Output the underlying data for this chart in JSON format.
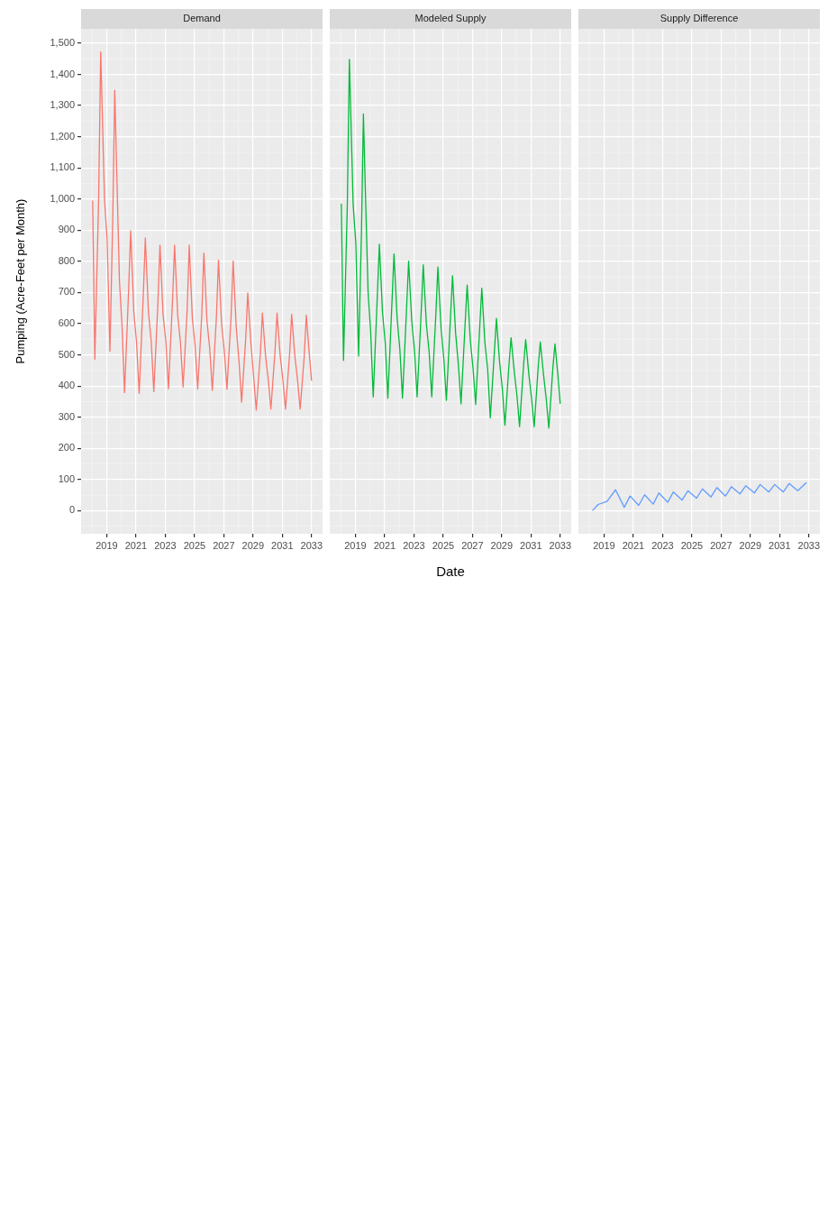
{
  "chart_data": [
    {
      "type": "line",
      "title": "Demand",
      "ylabel": "Pumping (Acre-Feet per Month)",
      "color": "#f8766d",
      "x": [
        2018.04,
        2018.19,
        2018.45,
        2018.59,
        2018.85,
        2019.03,
        2019.22,
        2019.42,
        2019.55,
        2019.67,
        2019.87,
        2020.04,
        2020.22,
        2020.5,
        2020.64,
        2020.85,
        2021.04,
        2021.22,
        2021.5,
        2021.64,
        2021.85,
        2022.04,
        2022.22,
        2022.5,
        2022.64,
        2022.85,
        2023.04,
        2023.22,
        2023.5,
        2023.64,
        2023.85,
        2024.04,
        2024.22,
        2024.5,
        2024.64,
        2024.85,
        2025.04,
        2025.22,
        2025.5,
        2025.64,
        2025.85,
        2026.04,
        2026.22,
        2026.5,
        2026.64,
        2026.85,
        2027.04,
        2027.22,
        2027.5,
        2027.64,
        2027.85,
        2028.04,
        2028.22,
        2028.5,
        2028.64,
        2028.85,
        2029.04,
        2029.22,
        2029.5,
        2029.64,
        2029.85,
        2030.04,
        2030.22,
        2030.5,
        2030.64,
        2030.85,
        2031.04,
        2031.22,
        2031.5,
        2031.64,
        2031.85,
        2032.04,
        2032.22,
        2032.5,
        2032.64,
        2032.85,
        2033.0
      ],
      "values": [
        995,
        486,
        1000,
        1472,
        1000,
        870,
        512,
        950,
        1349,
        1120,
        740,
        600,
        379,
        710,
        898,
        640,
        540,
        377,
        691,
        875,
        640,
        545,
        382,
        667,
        852,
        630,
        545,
        391,
        675,
        852,
        630,
        540,
        397,
        645,
        852,
        620,
        530,
        391,
        631,
        827,
        610,
        520,
        386,
        624,
        804,
        600,
        510,
        390,
        624,
        801,
        590,
        480,
        348,
        553,
        699,
        540,
        430,
        323,
        503,
        634,
        500,
        420,
        326,
        510,
        634,
        500,
        420,
        326,
        503,
        630,
        500,
        420,
        326,
        496,
        627,
        500,
        417
      ],
      "xlim": [
        2017.25,
        2033.75
      ],
      "xticks": [
        2019,
        2021,
        2023,
        2025,
        2027,
        2029,
        2031,
        2033
      ],
      "ylim": [
        -74,
        1546
      ],
      "yticks": [
        0,
        100,
        200,
        300,
        400,
        500,
        600,
        700,
        800,
        900,
        {
          "value": 1000,
          "label": "1,000"
        },
        {
          "value": 1100,
          "label": "1,100"
        },
        {
          "value": 1200,
          "label": "1,200"
        },
        {
          "value": 1300,
          "label": "1,300"
        },
        {
          "value": 1400,
          "label": "1,400"
        },
        {
          "value": 1500,
          "label": "1,500"
        }
      ],
      "grid": true
    },
    {
      "type": "line",
      "title": "Modeled Supply",
      "xlabel": "Date",
      "color": "#00ba38",
      "x": [
        2018.04,
        2018.19,
        2018.45,
        2018.59,
        2018.85,
        2019.03,
        2019.22,
        2019.42,
        2019.55,
        2019.67,
        2019.87,
        2020.04,
        2020.22,
        2020.5,
        2020.64,
        2020.85,
        2021.04,
        2021.22,
        2021.5,
        2021.64,
        2021.85,
        2022.04,
        2022.22,
        2022.5,
        2022.64,
        2022.85,
        2023.04,
        2023.22,
        2023.5,
        2023.64,
        2023.85,
        2024.04,
        2024.22,
        2024.5,
        2024.64,
        2024.85,
        2025.04,
        2025.22,
        2025.5,
        2025.64,
        2025.85,
        2026.04,
        2026.22,
        2026.5,
        2026.64,
        2026.85,
        2027.04,
        2027.22,
        2027.5,
        2027.64,
        2027.85,
        2028.04,
        2028.22,
        2028.5,
        2028.64,
        2028.85,
        2029.04,
        2029.22,
        2029.5,
        2029.64,
        2029.85,
        2030.04,
        2030.22,
        2030.5,
        2030.64,
        2030.85,
        2031.04,
        2031.22,
        2031.5,
        2031.64,
        2031.85,
        2032.04,
        2032.22,
        2032.5,
        2032.64,
        2032.85,
        2033.0
      ],
      "values": [
        985,
        482,
        980,
        1448,
        980,
        860,
        496,
        900,
        1273,
        1050,
        700,
        580,
        365,
        688,
        855,
        640,
        539,
        361,
        667,
        824,
        620,
        518,
        361,
        650,
        801,
        610,
        515,
        365,
        640,
        789,
        600,
        510,
        365,
        630,
        782,
        590,
        490,
        354,
        620,
        754,
        570,
        468,
        343,
        600,
        724,
        550,
        457,
        341,
        590,
        714,
        540,
        454,
        298,
        510,
        617,
        480,
        393,
        274,
        470,
        555,
        450,
        370,
        270,
        470,
        549,
        440,
        360,
        269,
        465,
        541,
        440,
        360,
        265,
        460,
        535,
        430,
        343
      ],
      "xlim": [
        2017.25,
        2033.75
      ],
      "xticks": [
        2019,
        2021,
        2023,
        2025,
        2027,
        2029,
        2031,
        2033
      ],
      "ylim": [
        -74,
        1546
      ],
      "yticks": [
        0,
        100,
        200,
        300,
        400,
        500,
        600,
        700,
        800,
        900,
        1000,
        1100,
        1200,
        1300,
        1400,
        1500
      ],
      "grid": true,
      "tick_labels": "x"
    },
    {
      "type": "line",
      "title": "Supply Difference",
      "color": "#619cff",
      "x": [
        2018.21,
        2018.6,
        2019.2,
        2019.79,
        2020.38,
        2020.78,
        2021.37,
        2021.77,
        2022.36,
        2022.75,
        2023.35,
        2023.74,
        2024.34,
        2024.73,
        2025.32,
        2025.72,
        2026.31,
        2026.71,
        2027.3,
        2027.7,
        2028.29,
        2028.68,
        2029.28,
        2029.67,
        2030.26,
        2030.66,
        2031.25,
        2031.65,
        2032.24,
        2032.83
      ],
      "values": [
        0,
        20,
        30,
        67,
        11,
        47,
        17,
        51,
        21,
        57,
        27,
        60,
        34,
        64,
        40,
        70,
        44,
        74,
        47,
        77,
        54,
        80,
        57,
        84,
        60,
        84,
        60,
        87,
        64,
        90
      ],
      "xlim": [
        2017.25,
        2033.75
      ],
      "xticks": [
        2019,
        2021,
        2023,
        2025,
        2027,
        2029,
        2031,
        2033
      ],
      "ylim": [
        -74,
        1546
      ],
      "yticks": [
        0,
        100,
        200,
        300,
        400,
        500,
        600,
        700,
        800,
        900,
        1000,
        1100,
        1200,
        1300,
        1400,
        1500
      ],
      "grid": true,
      "tick_labels": "x"
    }
  ]
}
